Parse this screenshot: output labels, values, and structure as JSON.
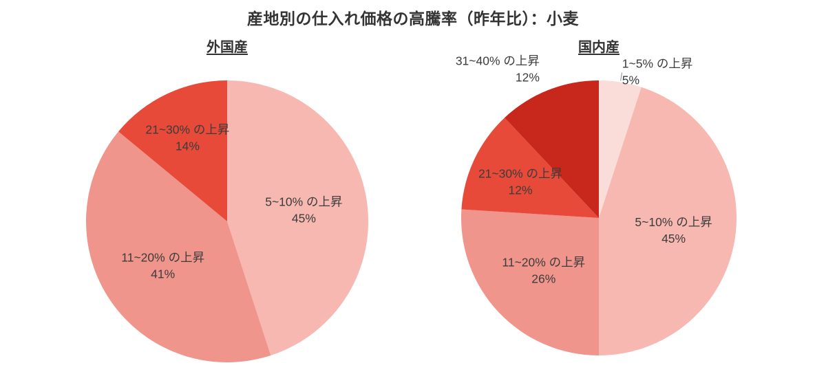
{
  "page": {
    "title": "産地別の仕入れ価格の高騰率（昨年比）：小麦"
  },
  "text_color": "#3c3c3c",
  "chart_data": [
    {
      "type": "pie",
      "title": "外国産",
      "start_angle_deg": 0,
      "direction": "clockwise",
      "legend": "none",
      "labels": "on-slices",
      "slices": [
        {
          "label": "5~10% の上昇",
          "value_pct": 45,
          "value_label": "45%",
          "color": "#f6b8b1"
        },
        {
          "label": "11~20% の上昇",
          "value_pct": 41,
          "value_label": "41%",
          "color": "#f0958b"
        },
        {
          "label": "21~30% の上昇",
          "value_pct": 14,
          "value_label": "14%",
          "color": "#e74a38",
          "label_f": 0.66
        }
      ]
    },
    {
      "type": "pie",
      "title": "国内産",
      "start_angle_deg": 0,
      "direction": "clockwise",
      "legend": "none",
      "labels": "on-slices",
      "slices": [
        {
          "label": "1~5% の上昇",
          "value_pct": 5,
          "value_label": "5%",
          "color": "#fadcd8",
          "label_placement": "outside",
          "label_f": 1.08,
          "leader": true
        },
        {
          "label": "5~10% の上昇",
          "value_pct": 45,
          "value_label": "45%",
          "color": "#f6b8b1"
        },
        {
          "label": "11~20% の上昇",
          "value_pct": 26,
          "value_label": "26%",
          "color": "#f0958b"
        },
        {
          "label": "21~30% の上昇",
          "value_pct": 12,
          "value_label": "12%",
          "color": "#e74a38",
          "label_f": 0.63
        },
        {
          "label": "31~40% の上昇",
          "value_pct": 12,
          "value_label": "12%",
          "color": "#c8271b",
          "label_placement": "outside",
          "label_f": 1.17
        }
      ]
    }
  ]
}
